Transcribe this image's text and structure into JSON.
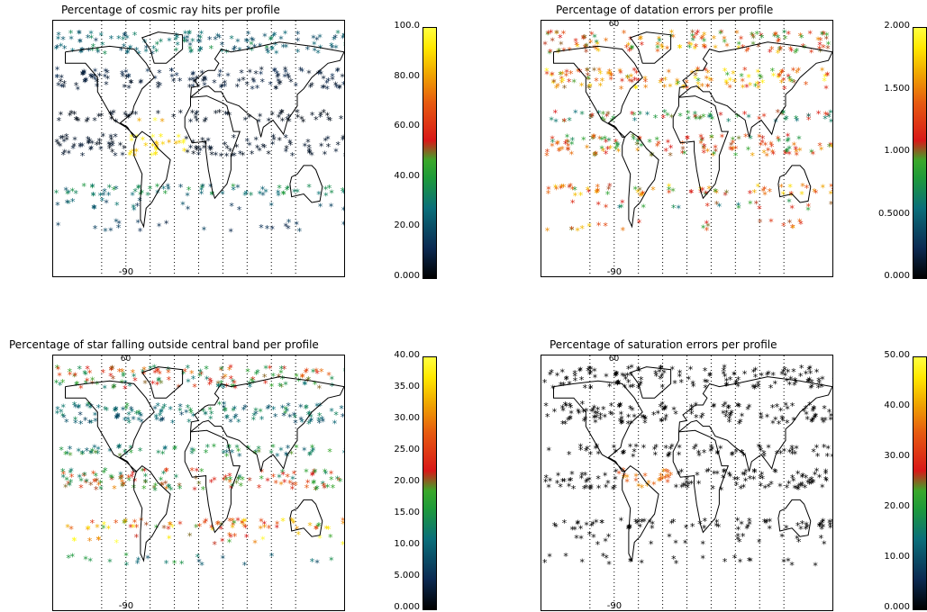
{
  "panels": [
    {
      "id": "cosmic",
      "title": "Percentage of cosmic ray hits per profile",
      "colorbar_ticks": [
        "0.000",
        "20.00",
        "40.00",
        "60.00",
        "80.00",
        "100.0"
      ],
      "range": [
        0,
        100
      ],
      "lon_label": "-90",
      "top_label": ""
    },
    {
      "id": "datation",
      "title": "Percentage of datation errors per profile",
      "colorbar_ticks": [
        "0.000",
        "0.5000",
        "1.000",
        "1.500",
        "2.000"
      ],
      "range": [
        0,
        2
      ],
      "lon_label": "-90",
      "top_label": "60"
    },
    {
      "id": "star",
      "title": "Percentage of star falling outside central band per profile",
      "colorbar_ticks": [
        "0.000",
        "5.000",
        "10.00",
        "15.00",
        "20.00",
        "25.00",
        "30.00",
        "35.00",
        "40.00"
      ],
      "range": [
        0,
        40
      ],
      "lon_label": "-90",
      "top_label": "60"
    },
    {
      "id": "saturation",
      "title": "Percentage of saturation errors per profile",
      "colorbar_ticks": [
        "0.000",
        "10.00",
        "20.00",
        "30.00",
        "40.00",
        "50.00"
      ],
      "range": [
        0,
        50
      ],
      "lon_label": "-90",
      "top_label": "60"
    }
  ],
  "chart_data": [
    {
      "type": "scatter",
      "title": "Percentage of cosmic ray hits per profile",
      "colorbar": {
        "min": 0,
        "max": 100,
        "ticks": [
          0,
          20,
          40,
          60,
          80,
          100
        ]
      },
      "xlim": [
        -180,
        180
      ],
      "ylim": [
        -90,
        90
      ],
      "bands": [
        {
          "lat": 78,
          "value": 25
        },
        {
          "lat": 70,
          "value": 28
        },
        {
          "lat": 52,
          "value": 10
        },
        {
          "lat": 45,
          "value": 8
        },
        {
          "lat": 22,
          "value": 5
        },
        {
          "lat": 5,
          "value": 6
        },
        {
          "lat": -2,
          "value": 6
        },
        {
          "lat": -30,
          "value": 30
        },
        {
          "lat": -40,
          "value": 22
        },
        {
          "lat": -55,
          "value": 15
        }
      ],
      "hotspot": {
        "lon": -55,
        "lat": 0,
        "value": 100
      }
    },
    {
      "type": "scatter",
      "title": "Percentage of datation errors per profile",
      "colorbar": {
        "min": 0,
        "max": 2,
        "ticks": [
          0,
          0.5,
          1.0,
          1.5,
          2.0
        ]
      },
      "xlim": [
        -180,
        180
      ],
      "ylim": [
        -90,
        90
      ],
      "bands": [
        {
          "lat": 78,
          "value": 1.2
        },
        {
          "lat": 70,
          "value": 1.3
        },
        {
          "lat": 52,
          "value": 1.4
        },
        {
          "lat": 45,
          "value": 1.4
        },
        {
          "lat": 22,
          "value": 0.9
        },
        {
          "lat": 5,
          "value": 1.1
        },
        {
          "lat": -2,
          "value": 1.2
        },
        {
          "lat": -30,
          "value": 1.3
        },
        {
          "lat": -40,
          "value": 0.9
        },
        {
          "lat": -55,
          "value": 1.3
        }
      ]
    },
    {
      "type": "scatter",
      "title": "Percentage of star falling outside central band per profile",
      "colorbar": {
        "min": 0,
        "max": 40,
        "ticks": [
          0,
          5,
          10,
          15,
          20,
          25,
          30,
          35,
          40
        ]
      },
      "xlim": [
        -180,
        180
      ],
      "ylim": [
        -90,
        90
      ],
      "bands": [
        {
          "lat": 78,
          "value": 22
        },
        {
          "lat": 70,
          "value": 18
        },
        {
          "lat": 52,
          "value": 12
        },
        {
          "lat": 45,
          "value": 10
        },
        {
          "lat": 22,
          "value": 14
        },
        {
          "lat": 5,
          "value": 20
        },
        {
          "lat": -2,
          "value": 22
        },
        {
          "lat": -30,
          "value": 28
        },
        {
          "lat": -40,
          "value": 30
        },
        {
          "lat": -55,
          "value": 12
        }
      ]
    },
    {
      "type": "scatter",
      "title": "Percentage of saturation errors per profile",
      "colorbar": {
        "min": 0,
        "max": 50,
        "ticks": [
          0,
          10,
          20,
          30,
          40,
          50
        ]
      },
      "xlim": [
        -180,
        180
      ],
      "ylim": [
        -90,
        90
      ],
      "bands": [
        {
          "lat": 78,
          "value": 0
        },
        {
          "lat": 70,
          "value": 0
        },
        {
          "lat": 52,
          "value": 0
        },
        {
          "lat": 45,
          "value": 0
        },
        {
          "lat": 22,
          "value": 0
        },
        {
          "lat": 5,
          "value": 0
        },
        {
          "lat": -2,
          "value": 0
        },
        {
          "lat": -30,
          "value": 0
        },
        {
          "lat": -40,
          "value": 0
        },
        {
          "lat": -55,
          "value": 0
        }
      ],
      "hotspot": {
        "lon": -55,
        "lat": -5,
        "value": 40
      }
    }
  ]
}
